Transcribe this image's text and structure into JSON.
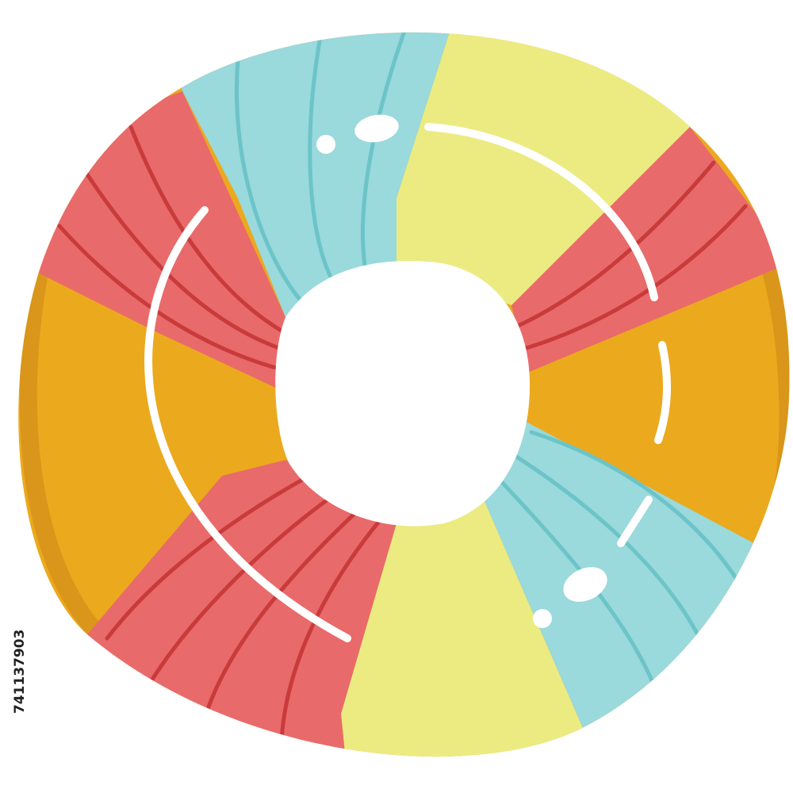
{
  "illustration": {
    "subject": "swim-ring",
    "colors": {
      "orange": "#EBA91E",
      "orange_dark": "#D9961A",
      "red": "#E96A6A",
      "red_dark": "#C93B3B",
      "cyan": "#9AD9DC",
      "cyan_dark": "#6CC4C8",
      "yellow": "#EBEB82",
      "highlight": "#FFFFFF"
    }
  },
  "watermark": {
    "stock_id": "741137903"
  }
}
